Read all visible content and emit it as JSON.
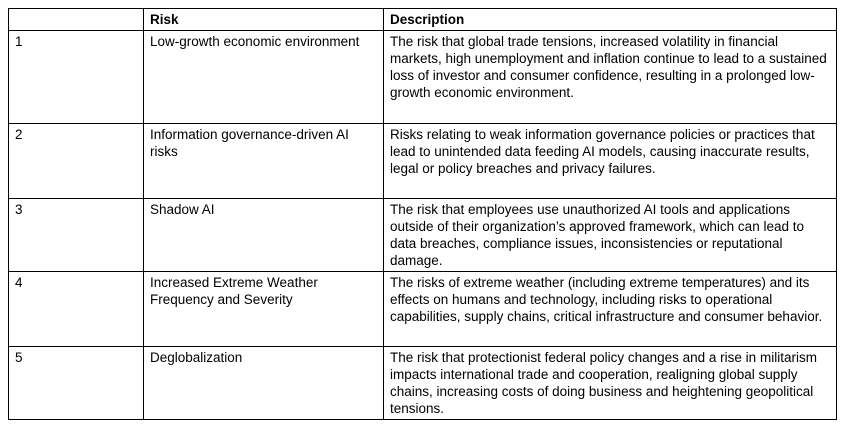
{
  "table": {
    "columns": [
      "",
      "Risk",
      "Description"
    ],
    "rows": [
      {
        "num": "1",
        "risk": "Low-growth economic environment",
        "description": "The risk that global trade tensions, increased volatility in financial markets, high unemployment and inflation continue to lead to a sustained loss of investor and consumer confidence, resulting in a prolonged low-growth economic environment."
      },
      {
        "num": "2",
        "risk": "Information governance-driven AI risks",
        "description": "Risks relating to weak information governance policies or practices that lead to unintended data feeding AI models, causing inaccurate results, legal or policy breaches and privacy failures."
      },
      {
        "num": "3",
        "risk": "Shadow AI",
        "description": "The risk that employees use unauthorized AI tools and applications outside of their organization’s approved framework, which can lead to data breaches, compliance issues, inconsistencies or reputational damage."
      },
      {
        "num": "4",
        "risk": "Increased Extreme Weather Frequency and Severity",
        "description": "The risks of extreme weather (including extreme temperatures) and its effects on humans and technology, including risks to operational capabilities, supply chains, critical infrastructure and consumer behavior."
      },
      {
        "num": "5",
        "risk": "Deglobalization",
        "description": "The risk that protectionist federal policy changes and a rise in militarism impacts international trade and cooperation, realigning global supply chains, increasing costs of doing business and heightening geopolitical tensions."
      }
    ]
  }
}
